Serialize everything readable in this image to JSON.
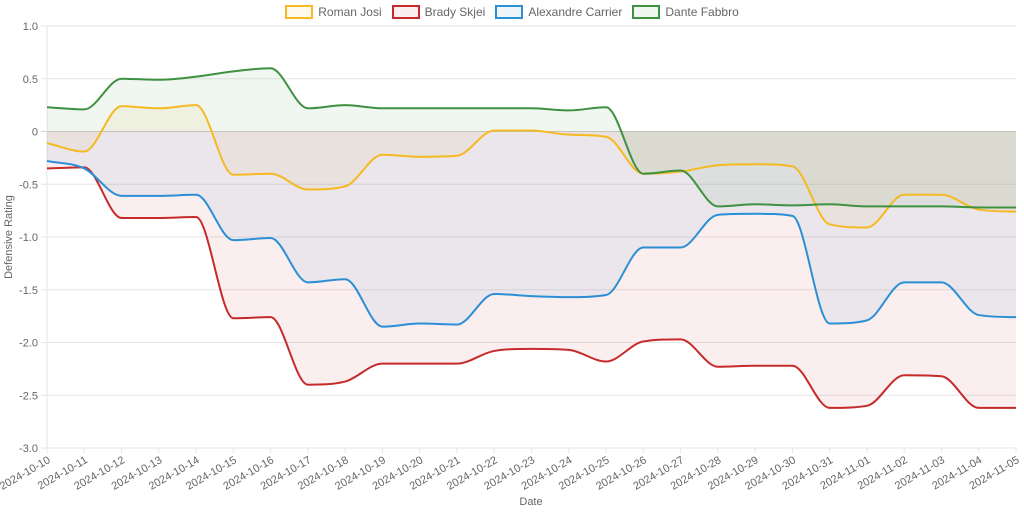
{
  "chart_data": {
    "type": "line",
    "title": "",
    "xlabel": "Date",
    "ylabel": "Defensive Rating",
    "ylim": [
      -3.0,
      1.0
    ],
    "yticks": [
      "1.0",
      "0.5",
      "0",
      "-0.5",
      "-1.0",
      "-1.5",
      "-2.0",
      "-2.5",
      "-3.0"
    ],
    "ytick_values": [
      1.0,
      0.5,
      0,
      -0.5,
      -1.0,
      -1.5,
      -2.0,
      -2.5,
      -3.0
    ],
    "grid": true,
    "fill": "origin",
    "legend_position": "top",
    "categories": [
      "2024-10-10",
      "2024-10-11",
      "2024-10-12",
      "2024-10-13",
      "2024-10-14",
      "2024-10-15",
      "2024-10-16",
      "2024-10-17",
      "2024-10-18",
      "2024-10-19",
      "2024-10-20",
      "2024-10-21",
      "2024-10-22",
      "2024-10-23",
      "2024-10-24",
      "2024-10-25",
      "2024-10-26",
      "2024-10-27",
      "2024-10-28",
      "2024-10-29",
      "2024-10-30",
      "2024-10-31",
      "2024-11-01",
      "2024-11-02",
      "2024-11-03",
      "2024-11-04",
      "2024-11-05"
    ],
    "series": [
      {
        "name": "Roman Josi",
        "color": "#f5b922",
        "values": [
          -0.11,
          -0.19,
          0.24,
          0.22,
          0.25,
          -0.41,
          -0.4,
          -0.55,
          -0.52,
          -0.22,
          -0.24,
          -0.23,
          0.01,
          0.01,
          -0.03,
          -0.05,
          -0.4,
          -0.38,
          -0.32,
          -0.31,
          -0.33,
          -0.88,
          -0.91,
          -0.6,
          -0.6,
          -0.74,
          -0.76
        ]
      },
      {
        "name": "Brady Skjei",
        "color": "#c62a2a",
        "values": [
          -0.35,
          -0.34,
          -0.82,
          -0.82,
          -0.81,
          -1.77,
          -1.76,
          -2.4,
          -2.37,
          -2.2,
          -2.2,
          -2.2,
          -2.08,
          -2.06,
          -2.07,
          -2.18,
          -1.99,
          -1.97,
          -2.23,
          -2.22,
          -2.22,
          -2.62,
          -2.6,
          -2.31,
          -2.32,
          -2.62,
          -2.62
        ]
      },
      {
        "name": "Alexandre Carrier",
        "color": "#2b8fd6",
        "values": [
          -0.28,
          -0.35,
          -0.61,
          -0.61,
          -0.6,
          -1.03,
          -1.01,
          -1.43,
          -1.4,
          -1.85,
          -1.82,
          -1.83,
          -1.54,
          -1.56,
          -1.57,
          -1.55,
          -1.1,
          -1.1,
          -0.79,
          -0.78,
          -0.8,
          -1.82,
          -1.79,
          -1.43,
          -1.43,
          -1.74,
          -1.76
        ]
      },
      {
        "name": "Dante Fabbro",
        "color": "#3f9142",
        "values": [
          0.23,
          0.21,
          0.5,
          0.49,
          0.52,
          0.57,
          0.6,
          0.22,
          0.25,
          0.22,
          0.22,
          0.22,
          0.22,
          0.22,
          0.2,
          0.23,
          -0.4,
          -0.37,
          -0.71,
          -0.69,
          -0.7,
          -0.69,
          -0.71,
          -0.71,
          -0.71,
          -0.72,
          -0.72
        ]
      }
    ]
  }
}
